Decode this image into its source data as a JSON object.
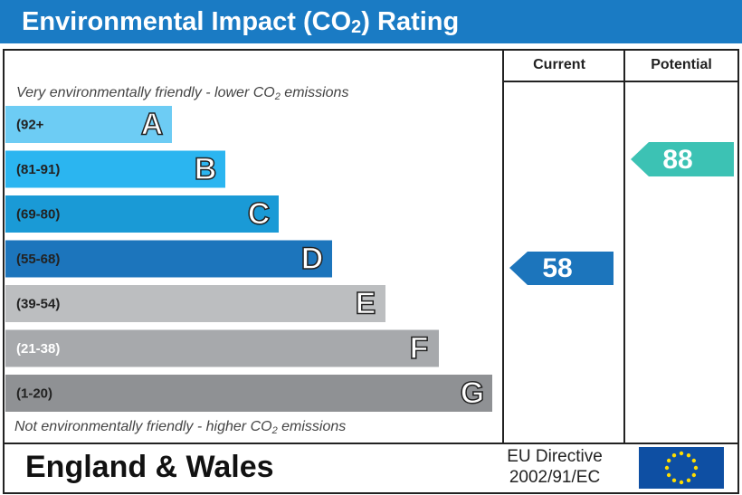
{
  "header": {
    "title": [
      "Environmental Impact (CO",
      "2",
      ") Rating"
    ]
  },
  "columns": {
    "current": "Current",
    "potential": "Potential"
  },
  "top_note": [
    "Very environmentally friendly - lower CO",
    "2",
    " emissions"
  ],
  "bottom_note": [
    "Not environmentally friendly - higher CO",
    "2",
    " emissions"
  ],
  "bands": [
    {
      "range": "(92+",
      "letter": "A",
      "color": "#6dccf4",
      "text_color": "#222"
    },
    {
      "range": "(81-91)",
      "letter": "B",
      "color": "#2bb5f0",
      "text_color": "#222"
    },
    {
      "range": "(69-80)",
      "letter": "C",
      "color": "#1a9ad6",
      "text_color": "#222"
    },
    {
      "range": "(55-68)",
      "letter": "D",
      "color": "#1c75bc",
      "text_color": "#222"
    },
    {
      "range": "(39-54)",
      "letter": "E",
      "color": "#bcbec0",
      "text_color": "#222"
    },
    {
      "range": "(21-38)",
      "letter": "F",
      "color": "#a7a9ac",
      "text_color": "#fff"
    },
    {
      "range": "(1-20)",
      "letter": "G",
      "color": "#8f9194",
      "text_color": "#222"
    }
  ],
  "current": {
    "value": 58,
    "color": "#1c75bc"
  },
  "potential": {
    "value": 88,
    "color": "#3cc2b4"
  },
  "footer": {
    "region": "England & Wales",
    "directive": [
      "EU Directive",
      "2002/91/EC"
    ]
  }
}
